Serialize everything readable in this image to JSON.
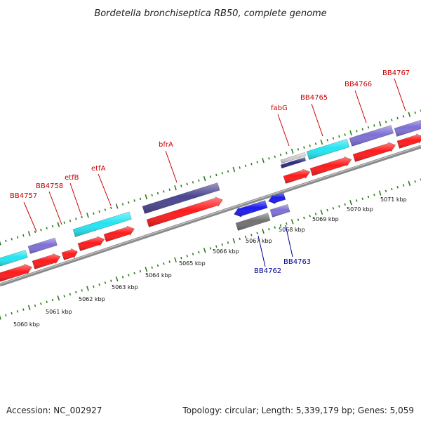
{
  "title": "Bordetella bronchiseptica RB50, complete genome",
  "footer": {
    "accession": "Accession: NC_002927",
    "summary": "Topology: circular; Length: 5,339,179 bp; Genes: 5,059"
  },
  "colors": {
    "backbone": "#8a8a8a",
    "ticks": "#2e7d1e",
    "label_forward": "#cc0000",
    "label_reverse": "#000099",
    "cds_forward": "#ff1a1a",
    "cds_reverse": "#1a1aee",
    "cyan_feature": "#22e5f2",
    "purple_feature": "#7d6fd6",
    "dark_feature": "#4a4590",
    "gray_feature": "#707070"
  },
  "scale_labels": [
    "5060 kbp",
    "5061 kbp",
    "5062 kbp",
    "5063 kbp",
    "5064 kbp",
    "5065 kbp",
    "5066 kbp",
    "5067 kbp",
    "5068 kbp",
    "5069 kbp",
    "5070 kbp",
    "5071 kbp"
  ],
  "forward_genes": [
    "BB4757",
    "BB4758",
    "etfB",
    "etfA",
    "bfrA",
    "fabG",
    "BB4765",
    "BB4766",
    "BB4767"
  ],
  "reverse_genes": [
    "BB4762",
    "BB4763"
  ]
}
